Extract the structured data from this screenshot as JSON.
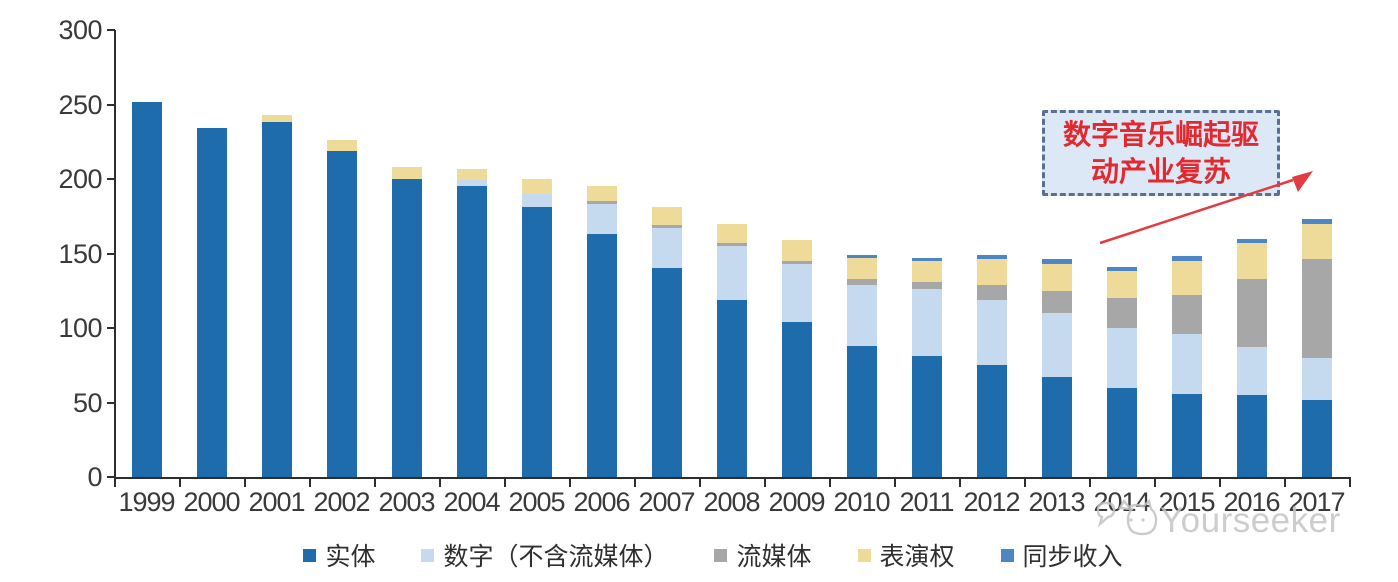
{
  "chart_data": {
    "type": "bar",
    "stacked": true,
    "title": "",
    "xlabel": "",
    "ylabel": "",
    "ylim": [
      0,
      300
    ],
    "yticks": [
      0,
      50,
      100,
      150,
      200,
      250,
      300
    ],
    "grid": false,
    "legend_position": "bottom",
    "categories": [
      "1999",
      "2000",
      "2001",
      "2002",
      "2003",
      "2004",
      "2005",
      "2006",
      "2007",
      "2008",
      "2009",
      "2010",
      "2011",
      "2012",
      "2013",
      "2014",
      "2015",
      "2016",
      "2017"
    ],
    "series": [
      {
        "name": "实体",
        "color": "#1f6cad",
        "values": [
          252,
          234,
          238,
          219,
          200,
          195,
          181,
          163,
          140,
          119,
          104,
          88,
          81,
          75,
          67,
          60,
          56,
          55,
          52
        ]
      },
      {
        "name": "数字（不含流媒体）",
        "color": "#c5daef",
        "values": [
          0,
          0,
          0,
          0,
          0,
          4,
          9,
          20,
          27,
          36,
          39,
          41,
          45,
          44,
          43,
          40,
          40,
          32,
          28
        ]
      },
      {
        "name": "流媒体",
        "color": "#a7a7a7",
        "values": [
          0,
          0,
          0,
          0,
          0,
          0,
          0,
          2,
          2,
          2,
          2,
          4,
          5,
          10,
          15,
          20,
          26,
          46,
          66
        ]
      },
      {
        "name": "表演权",
        "color": "#efdb99",
        "values": [
          0,
          0,
          5,
          7,
          8,
          8,
          10,
          10,
          12,
          13,
          14,
          14,
          14,
          17,
          18,
          18,
          23,
          24,
          24
        ]
      },
      {
        "name": "同步收入",
        "color": "#4c86c4",
        "values": [
          0,
          0,
          0,
          0,
          0,
          0,
          0,
          0,
          0,
          0,
          0,
          2,
          2,
          3,
          3,
          3,
          3,
          3,
          3
        ]
      }
    ]
  },
  "annotation": {
    "lines": [
      "数字音乐崛起驱",
      "动产业复苏"
    ],
    "text_color": "#e02a30",
    "box_fill": "#dce8f6",
    "box_border": "#5a6e96",
    "arrow_color": "#e23b41"
  },
  "watermark": {
    "text": "Yourseeker",
    "color": "#c5c5c5",
    "logo": "cat-bubble-logo"
  },
  "colors": {
    "axis": "#2e2e2e",
    "label": "#3a3a3a",
    "background": "#ffffff"
  }
}
